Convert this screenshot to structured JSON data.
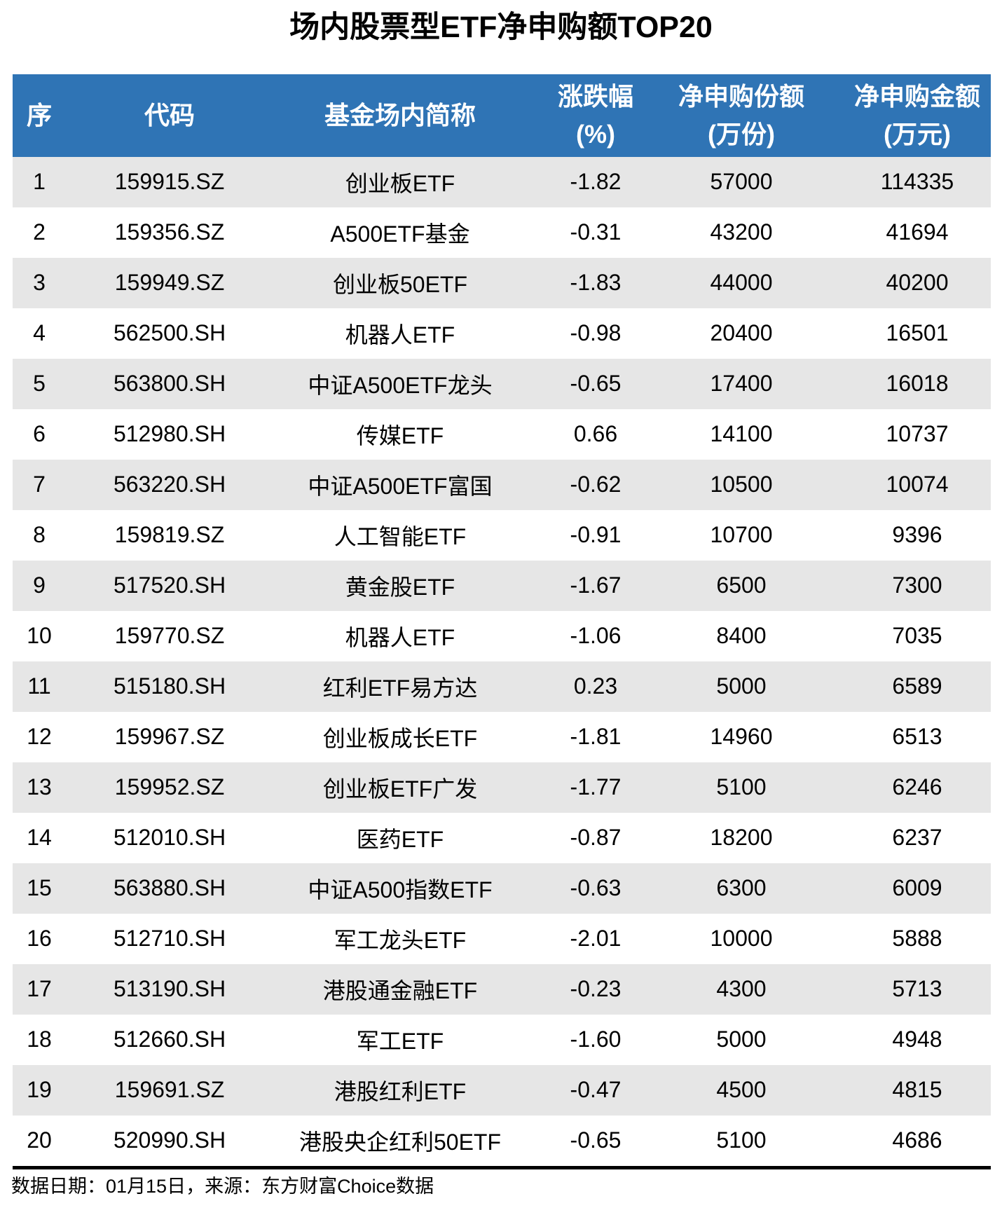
{
  "chart_data": {
    "type": "table",
    "title": "场内股票型ETF净申购额TOP20",
    "columns": [
      {
        "key": "rank",
        "label": "序",
        "sub": ""
      },
      {
        "key": "code",
        "label": "代码",
        "sub": ""
      },
      {
        "key": "name",
        "label": "基金场内简称",
        "sub": ""
      },
      {
        "key": "change",
        "label": "涨跌幅",
        "sub": "(%)"
      },
      {
        "key": "shares",
        "label": "净申购份额",
        "sub": "(万份)"
      },
      {
        "key": "amount",
        "label": "净申购金额",
        "sub": "(万元)"
      }
    ],
    "rows": [
      [
        "1",
        "159915.SZ",
        "创业板ETF",
        "-1.82",
        "57000",
        "114335"
      ],
      [
        "2",
        "159356.SZ",
        "A500ETF基金",
        "-0.31",
        "43200",
        "41694"
      ],
      [
        "3",
        "159949.SZ",
        "创业板50ETF",
        "-1.83",
        "44000",
        "40200"
      ],
      [
        "4",
        "562500.SH",
        "机器人ETF",
        "-0.98",
        "20400",
        "16501"
      ],
      [
        "5",
        "563800.SH",
        "中证A500ETF龙头",
        "-0.65",
        "17400",
        "16018"
      ],
      [
        "6",
        "512980.SH",
        "传媒ETF",
        "0.66",
        "14100",
        "10737"
      ],
      [
        "7",
        "563220.SH",
        "中证A500ETF富国",
        "-0.62",
        "10500",
        "10074"
      ],
      [
        "8",
        "159819.SZ",
        "人工智能ETF",
        "-0.91",
        "10700",
        "9396"
      ],
      [
        "9",
        "517520.SH",
        "黄金股ETF",
        "-1.67",
        "6500",
        "7300"
      ],
      [
        "10",
        "159770.SZ",
        "机器人ETF",
        "-1.06",
        "8400",
        "7035"
      ],
      [
        "11",
        "515180.SH",
        "红利ETF易方达",
        "0.23",
        "5000",
        "6589"
      ],
      [
        "12",
        "159967.SZ",
        "创业板成长ETF",
        "-1.81",
        "14960",
        "6513"
      ],
      [
        "13",
        "159952.SZ",
        "创业板ETF广发",
        "-1.77",
        "5100",
        "6246"
      ],
      [
        "14",
        "512010.SH",
        "医药ETF",
        "-0.87",
        "18200",
        "6237"
      ],
      [
        "15",
        "563880.SH",
        "中证A500指数ETF",
        "-0.63",
        "6300",
        "6009"
      ],
      [
        "16",
        "512710.SH",
        "军工龙头ETF",
        "-2.01",
        "10000",
        "5888"
      ],
      [
        "17",
        "513190.SH",
        "港股通金融ETF",
        "-0.23",
        "4300",
        "5713"
      ],
      [
        "18",
        "512660.SH",
        "军工ETF",
        "-1.60",
        "5000",
        "4948"
      ],
      [
        "19",
        "159691.SZ",
        "港股红利ETF",
        "-0.47",
        "4500",
        "4815"
      ],
      [
        "20",
        "520990.SH",
        "港股央企红利50ETF",
        "-0.65",
        "5100",
        "4686"
      ]
    ],
    "source_note": "数据日期：01月15日，来源：东方财富Choice数据",
    "layout_hints": "header row blue with white bold text, body rows zebra-striped gray/white, thick black rule above source note"
  },
  "colors": {
    "header_bg": "#2F74B5",
    "stripe_bg": "#E6E6E6",
    "text": "#000000",
    "title": "#000000",
    "rule": "#000000"
  }
}
